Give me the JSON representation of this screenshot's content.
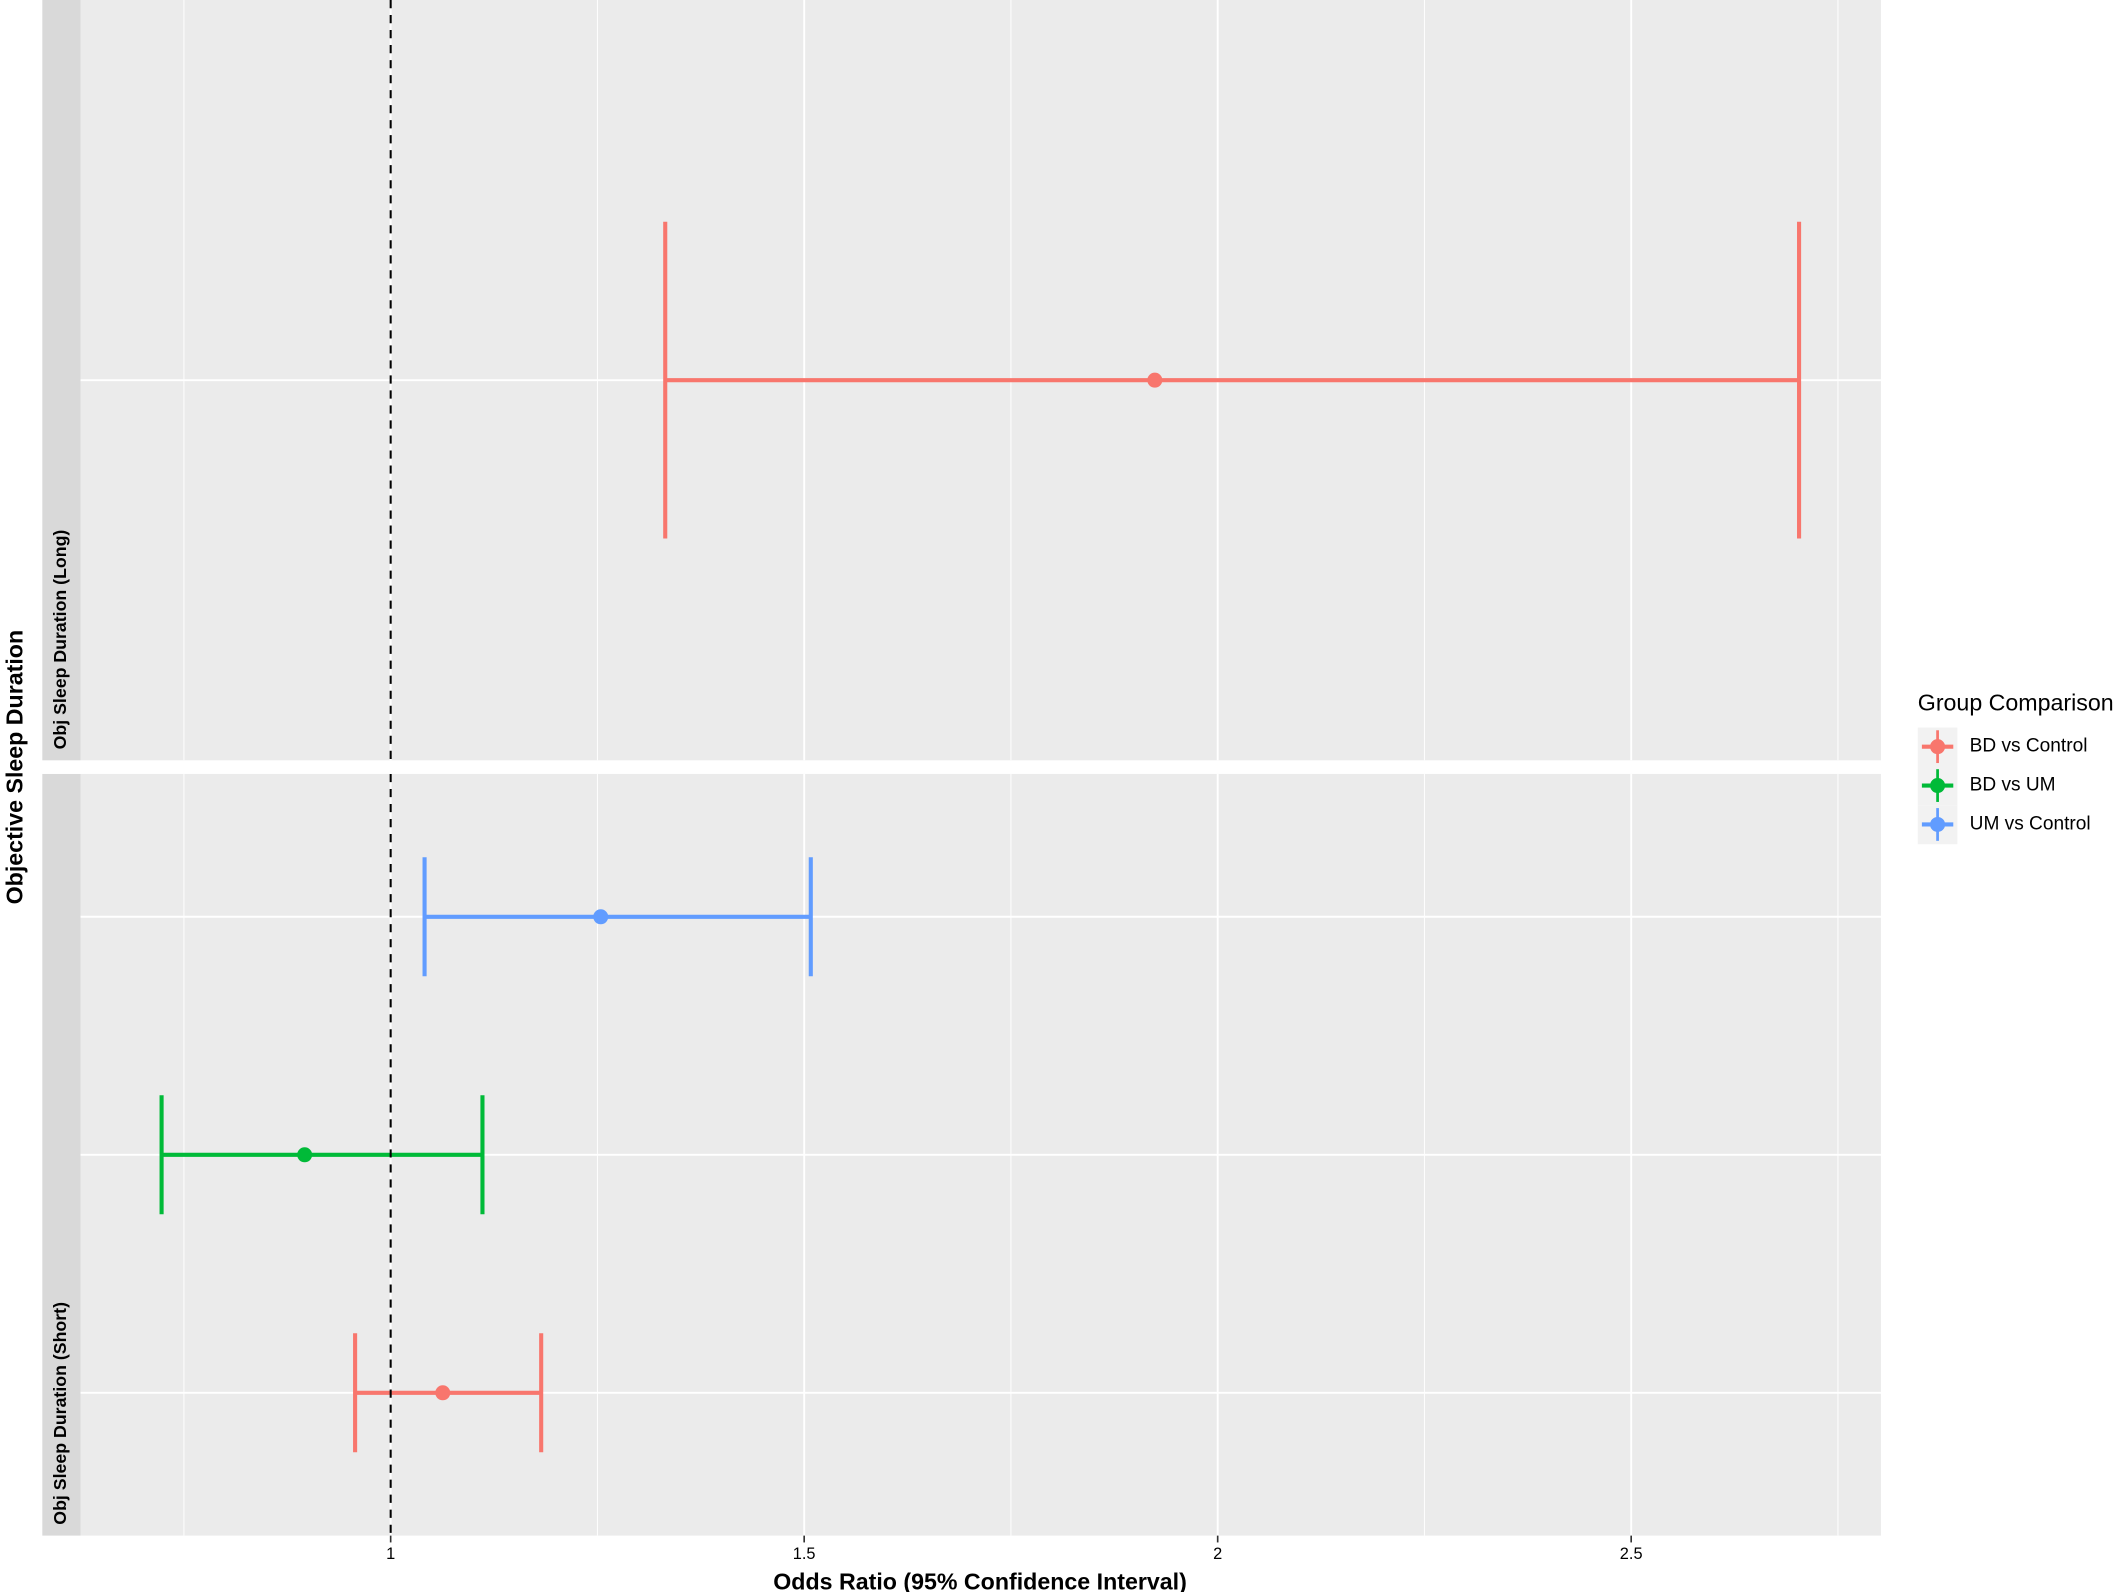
{
  "chart_data": {
    "type": "errorbar",
    "x_title": "Odds Ratio (95% Confidence Interval)",
    "y_title": "Objective Sleep Duration",
    "legend_title": "Group Comparison",
    "categories": [
      "Obj Sleep Duration (Long)",
      "Obj Sleep Duration (Short)"
    ],
    "series": [
      {
        "name": "BD vs Control",
        "color": "#f8766d",
        "values": [
          1.924,
          1.063
        ],
        "low": [
          1.332,
          0.957
        ],
        "high": [
          2.703,
          1.182
        ]
      },
      {
        "name": "BD vs UM",
        "color": "#00ba38",
        "values": [
          null,
          0.896
        ],
        "low": [
          null,
          0.723
        ],
        "high": [
          null,
          1.111
        ]
      },
      {
        "name": "UM vs Control",
        "color": "#619cff",
        "values": [
          null,
          1.254
        ],
        "low": [
          null,
          1.041
        ],
        "high": [
          null,
          1.508
        ]
      }
    ],
    "xlim": [
      0.625,
      2.802
    ],
    "xticks": [
      1.0,
      1.5,
      2.0,
      2.5
    ],
    "xminor": [
      0.75,
      1.25,
      1.75,
      2.25,
      2.75
    ],
    "ref_line": 1,
    "grid": true
  }
}
